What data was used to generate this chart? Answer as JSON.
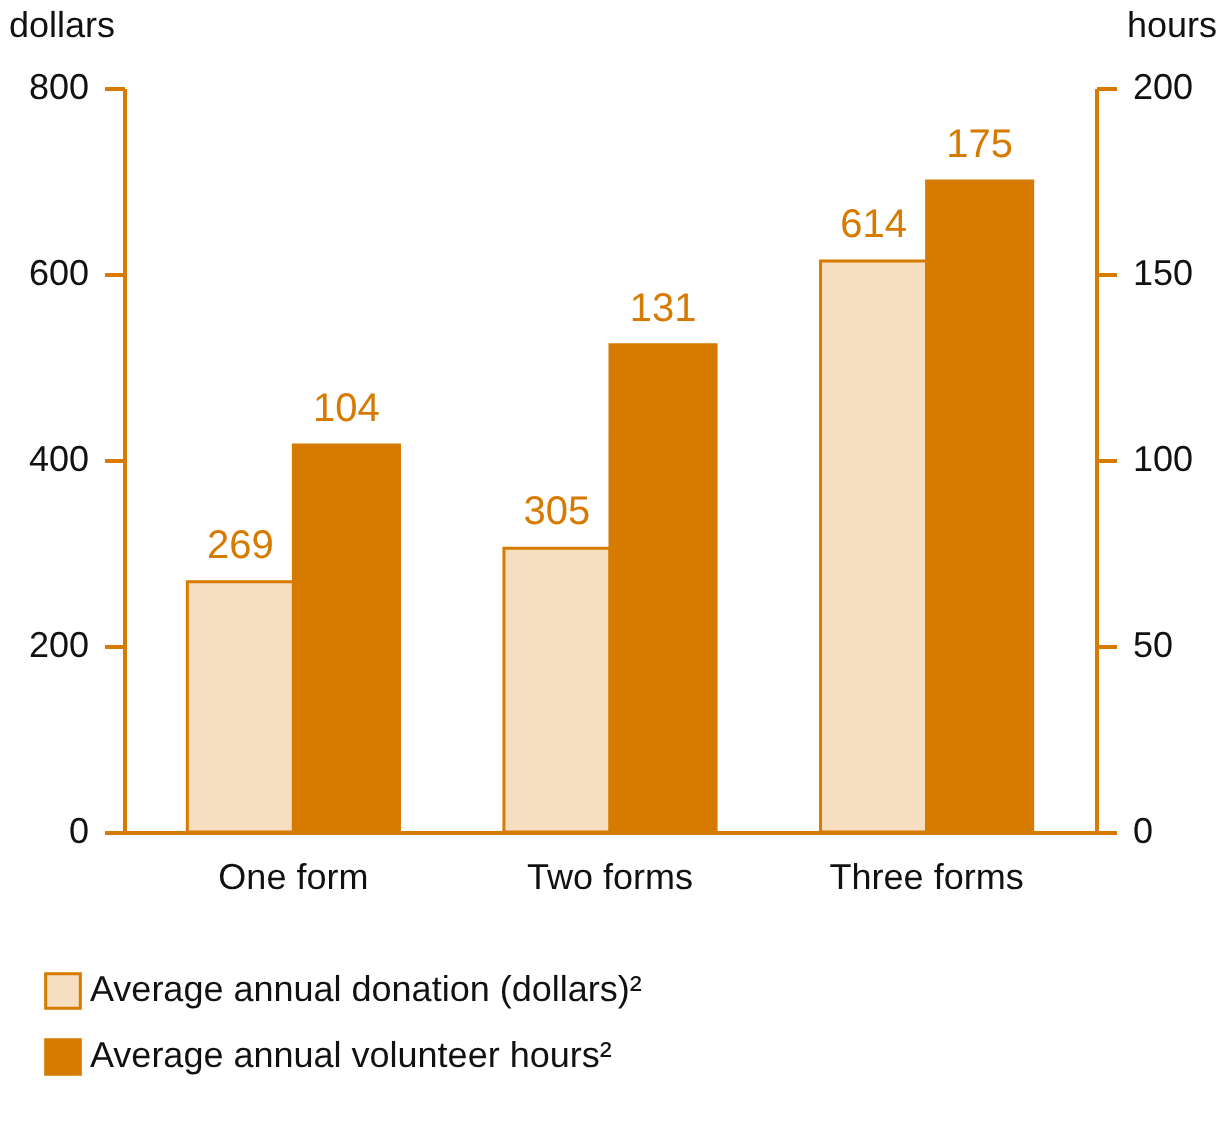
{
  "chart_data": {
    "type": "bar",
    "categories": [
      "One form",
      "Two forms",
      "Three forms"
    ],
    "ylabel": "dollars",
    "y2label": "hours",
    "ylim": [
      0,
      800
    ],
    "yticks": [
      0,
      200,
      400,
      600,
      800
    ],
    "y2lim": [
      0,
      200
    ],
    "y2ticks": [
      0,
      50,
      100,
      150,
      200
    ],
    "series": [
      {
        "name": "Average annual donation (dollars)²",
        "color": "#f5dfc0",
        "values": [
          269,
          305,
          614
        ]
      },
      {
        "name": "Average annual volunteer hours²",
        "color": "#d67a00",
        "values": [
          104,
          131,
          175
        ],
        "axis": "y2"
      }
    ],
    "data_labels": true,
    "legend": "bottom"
  }
}
